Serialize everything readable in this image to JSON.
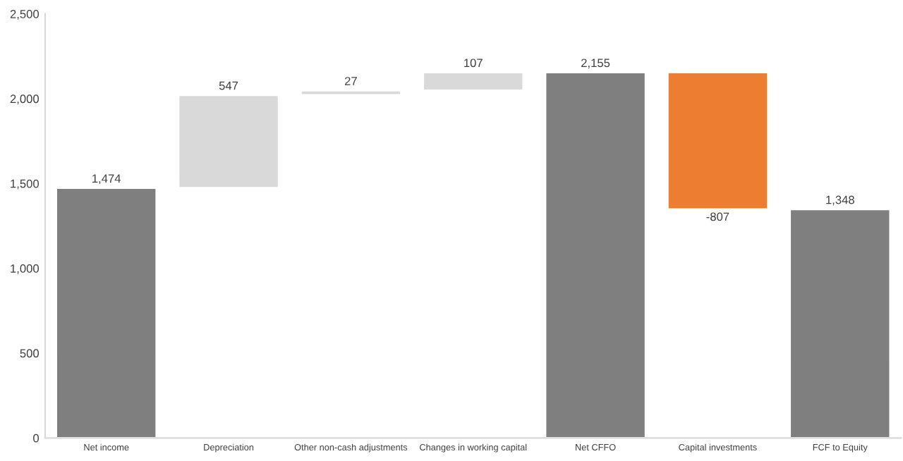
{
  "chart_data": {
    "type": "bar",
    "categories": [
      "Net income",
      "Depreciation",
      "Other non-cash adjustments",
      "Changes in working capital",
      "Net CFFO",
      "Capital investments",
      "FCF to Equity"
    ],
    "values": [
      1474,
      547,
      27,
      107,
      2155,
      -807,
      1348
    ],
    "base": [
      0,
      1474,
      2021,
      2048,
      0,
      2155,
      0
    ],
    "colors": [
      "#7f7f7f",
      "#d9d9d9",
      "#d9d9d9",
      "#d9d9d9",
      "#7f7f7f",
      "#ed7d31",
      "#7f7f7f"
    ],
    "value_labels": [
      "1,474",
      "547",
      "27",
      "107",
      "2,155",
      "-807",
      "1,348"
    ],
    "ylim": [
      0,
      2500
    ],
    "yticks": [
      {
        "value": 0,
        "label": "0"
      },
      {
        "value": 500,
        "label": "500"
      },
      {
        "value": 1000,
        "label": "1,000"
      },
      {
        "value": 1500,
        "label": "1,500"
      },
      {
        "value": 2000,
        "label": "2,000"
      },
      {
        "value": 2500,
        "label": "2,500"
      }
    ],
    "grid": false,
    "legend": false
  }
}
